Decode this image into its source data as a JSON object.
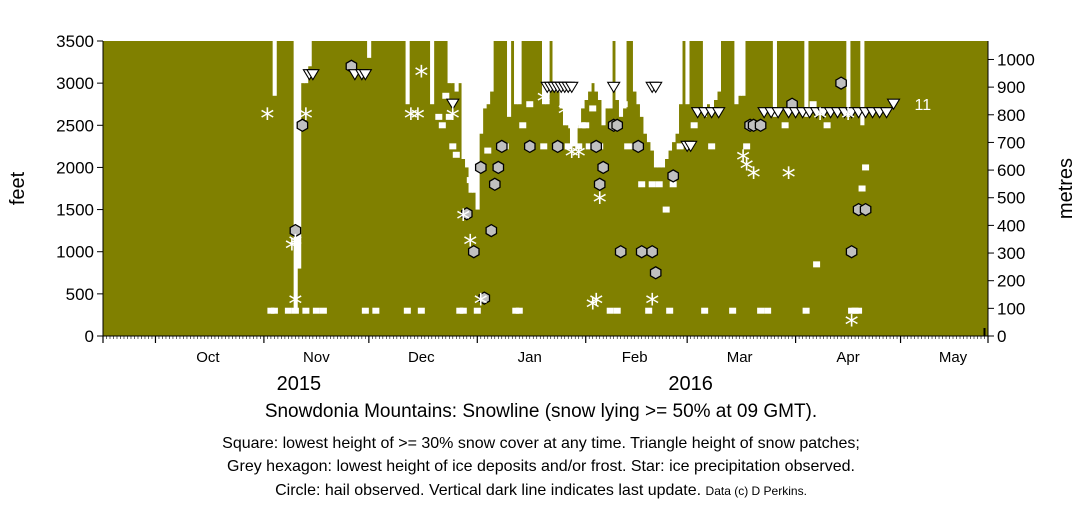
{
  "chart_data": {
    "type": "scatter",
    "title": "Snowdonia Mountains: Snowline (snow lying >= 50% at 09 GMT).",
    "notes": [
      "Square: lowest height of >= 30% snow cover at any time. Triangle height of snow patches;",
      "Grey hexagon: lowest height of ice deposits and/or frost. Star: ice precipitation observed.",
      "Circle: hail observed. Vertical dark line indicates last update."
    ],
    "credit": "Data (c) D Perkins.",
    "ylabel_left": "feet",
    "ylabel_right": "metres",
    "ylim_feet": [
      0,
      3500
    ],
    "ylim_metres": [
      0,
      1066.8
    ],
    "yticks_feet": [
      0,
      500,
      1000,
      1500,
      2000,
      2500,
      3000,
      3500
    ],
    "yticks_metres": [
      0,
      100,
      200,
      300,
      400,
      500,
      600,
      700,
      800,
      900,
      1000
    ],
    "xlim": [
      "2015-09-16",
      "2016-05-26"
    ],
    "month_ticks": [
      "2015-09-16",
      "2015-10-01",
      "2015-11-01",
      "2015-12-01",
      "2016-01-01",
      "2016-02-01",
      "2016-03-01",
      "2016-04-01",
      "2016-05-01",
      "2016-05-26"
    ],
    "month_labels": [
      {
        "date": "2015-10-16",
        "label": "Oct"
      },
      {
        "date": "2015-11-16",
        "label": "Nov"
      },
      {
        "date": "2015-12-16",
        "label": "Dec"
      },
      {
        "date": "2016-01-16",
        "label": "Jan"
      },
      {
        "date": "2016-02-15",
        "label": "Feb"
      },
      {
        "date": "2016-03-16",
        "label": "Mar"
      },
      {
        "date": "2016-04-16",
        "label": "Apr"
      },
      {
        "date": "2016-05-16",
        "label": "May"
      }
    ],
    "year_labels": [
      {
        "date": "2015-11-11",
        "label": "2015"
      },
      {
        "date": "2016-03-02",
        "label": "2016"
      }
    ],
    "colors": {
      "background": "#808000",
      "snow": "#ffffff",
      "hexagon": "#c0c0c0",
      "outline": "#000000"
    },
    "snowline_columns": [
      [
        "2015-11-04",
        2850
      ],
      [
        "2015-11-10",
        300
      ],
      [
        "2015-11-11",
        800
      ],
      [
        "2015-11-12",
        3000
      ],
      [
        "2015-11-13",
        3000
      ],
      [
        "2015-11-14",
        3200
      ],
      [
        "2015-12-01",
        3300
      ],
      [
        "2015-12-12",
        2750
      ],
      [
        "2015-12-19",
        2750
      ],
      [
        "2015-12-24",
        3000
      ],
      [
        "2015-12-25",
        3000
      ],
      [
        "2015-12-26",
        2900
      ],
      [
        "2015-12-27",
        3000
      ],
      [
        "2015-12-28",
        2100
      ],
      [
        "2015-12-29",
        2000
      ],
      [
        "2015-12-30",
        1700
      ],
      [
        "2015-12-31",
        1700
      ],
      [
        "2016-01-01",
        1500
      ],
      [
        "2016-01-02",
        2400
      ],
      [
        "2016-01-03",
        2700
      ],
      [
        "2016-01-04",
        2750
      ],
      [
        "2016-01-05",
        2900
      ],
      [
        "2016-01-10",
        2600
      ],
      [
        "2016-01-12",
        2750
      ],
      [
        "2016-01-13",
        2750
      ],
      [
        "2016-01-20",
        2750
      ],
      [
        "2016-01-21",
        2750
      ],
      [
        "2016-01-23",
        3000
      ],
      [
        "2016-01-24",
        2900
      ],
      [
        "2016-01-25",
        2700
      ],
      [
        "2016-01-26",
        2500
      ],
      [
        "2016-01-27",
        2500
      ],
      [
        "2016-01-28",
        2250
      ],
      [
        "2016-01-29",
        2250
      ],
      [
        "2016-01-30",
        2500
      ],
      [
        "2016-01-31",
        2700
      ],
      [
        "2016-02-01",
        2800
      ],
      [
        "2016-02-02",
        2900
      ],
      [
        "2016-02-03",
        3000
      ],
      [
        "2016-02-04",
        2900
      ],
      [
        "2016-02-05",
        2800
      ],
      [
        "2016-02-06",
        2500
      ],
      [
        "2016-02-07",
        2700
      ],
      [
        "2016-02-08",
        2700
      ],
      [
        "2016-02-10",
        2800
      ],
      [
        "2016-02-11",
        2600
      ],
      [
        "2016-02-12",
        2700
      ],
      [
        "2016-02-15",
        2900
      ],
      [
        "2016-02-16",
        2750
      ],
      [
        "2016-02-17",
        2600
      ],
      [
        "2016-02-18",
        2400
      ],
      [
        "2016-02-19",
        2300
      ],
      [
        "2016-02-20",
        2200
      ],
      [
        "2016-02-21",
        2000
      ],
      [
        "2016-02-22",
        2000
      ],
      [
        "2016-02-23",
        2000
      ],
      [
        "2016-02-24",
        2100
      ],
      [
        "2016-02-25",
        2200
      ],
      [
        "2016-02-26",
        2300
      ],
      [
        "2016-02-27",
        2400
      ],
      [
        "2016-02-28",
        2750
      ],
      [
        "2016-03-01",
        2750
      ],
      [
        "2016-03-06",
        2600
      ],
      [
        "2016-03-07",
        2750
      ],
      [
        "2016-03-08",
        2700
      ],
      [
        "2016-03-09",
        2800
      ],
      [
        "2016-03-10",
        2900
      ],
      [
        "2016-03-15",
        2750
      ],
      [
        "2016-03-16",
        2850
      ],
      [
        "2016-03-17",
        2850
      ],
      [
        "2016-03-26",
        2600
      ],
      [
        "2016-04-04",
        2600
      ],
      [
        "2016-04-16",
        2600
      ],
      [
        "2016-04-20",
        2500
      ]
    ],
    "squares": [
      [
        "2015-11-03",
        300
      ],
      [
        "2015-11-04",
        300
      ],
      [
        "2015-11-08",
        300
      ],
      [
        "2015-11-10",
        300
      ],
      [
        "2015-11-13",
        300
      ],
      [
        "2015-11-16",
        300
      ],
      [
        "2015-11-18",
        300
      ],
      [
        "2015-11-30",
        300
      ],
      [
        "2015-12-03",
        300
      ],
      [
        "2015-12-12",
        300
      ],
      [
        "2015-12-16",
        300
      ],
      [
        "2015-12-21",
        2600
      ],
      [
        "2015-12-22",
        2500
      ],
      [
        "2015-12-23",
        2850
      ],
      [
        "2015-12-24",
        2600
      ],
      [
        "2015-12-25",
        2250
      ],
      [
        "2015-12-26",
        2150
      ],
      [
        "2015-12-27",
        300
      ],
      [
        "2015-12-28",
        300
      ],
      [
        "2015-12-30",
        1850
      ],
      [
        "2016-01-01",
        300
      ],
      [
        "2016-01-04",
        2200
      ],
      [
        "2016-01-09",
        2250
      ],
      [
        "2016-01-12",
        300
      ],
      [
        "2016-01-13",
        300
      ],
      [
        "2016-01-14",
        2500
      ],
      [
        "2016-01-16",
        2750
      ],
      [
        "2016-01-20",
        2250
      ],
      [
        "2016-01-24",
        2250
      ],
      [
        "2016-01-27",
        2250
      ],
      [
        "2016-01-28",
        2500
      ],
      [
        "2016-01-29",
        2500
      ],
      [
        "2016-01-30",
        2250
      ],
      [
        "2016-01-31",
        2500
      ],
      [
        "2016-02-01",
        2500
      ],
      [
        "2016-02-02",
        2250
      ],
      [
        "2016-02-03",
        2700
      ],
      [
        "2016-02-05",
        2250
      ],
      [
        "2016-02-08",
        300
      ],
      [
        "2016-02-10",
        300
      ],
      [
        "2016-02-12",
        2750
      ],
      [
        "2016-02-13",
        2250
      ],
      [
        "2016-02-15",
        2250
      ],
      [
        "2016-02-17",
        1800
      ],
      [
        "2016-02-19",
        300
      ],
      [
        "2016-02-20",
        1800
      ],
      [
        "2016-02-22",
        1800
      ],
      [
        "2016-02-24",
        1500
      ],
      [
        "2016-02-25",
        300
      ],
      [
        "2016-02-26",
        1800
      ],
      [
        "2016-02-28",
        2250
      ],
      [
        "2016-03-03",
        2500
      ],
      [
        "2016-03-06",
        300
      ],
      [
        "2016-03-08",
        2250
      ],
      [
        "2016-03-14",
        300
      ],
      [
        "2016-03-18",
        2250
      ],
      [
        "2016-03-22",
        300
      ],
      [
        "2016-03-24",
        300
      ],
      [
        "2016-03-29",
        2500
      ],
      [
        "2016-04-04",
        300
      ],
      [
        "2016-04-06",
        2750
      ],
      [
        "2016-04-07",
        850
      ],
      [
        "2016-04-10",
        2500
      ],
      [
        "2016-04-17",
        300
      ],
      [
        "2016-04-18",
        300
      ],
      [
        "2016-04-19",
        300
      ],
      [
        "2016-04-20",
        1750
      ],
      [
        "2016-04-21",
        2000
      ]
    ],
    "triangles": [
      [
        "2015-11-14",
        3100
      ],
      [
        "2015-11-15",
        3100
      ],
      [
        "2015-11-27",
        3100
      ],
      [
        "2015-11-29",
        3100
      ],
      [
        "2015-11-30",
        3100
      ],
      [
        "2015-12-25",
        2750
      ],
      [
        "2016-01-21",
        2950
      ],
      [
        "2016-01-22",
        2950
      ],
      [
        "2016-01-23",
        2950
      ],
      [
        "2016-01-24",
        2950
      ],
      [
        "2016-01-25",
        2950
      ],
      [
        "2016-01-26",
        2950
      ],
      [
        "2016-01-27",
        2950
      ],
      [
        "2016-01-28",
        2950
      ],
      [
        "2016-02-09",
        2950
      ],
      [
        "2016-02-20",
        2950
      ],
      [
        "2016-02-21",
        2950
      ],
      [
        "2016-03-01",
        2250
      ],
      [
        "2016-03-02",
        2250
      ],
      [
        "2016-03-04",
        2650
      ],
      [
        "2016-03-06",
        2650
      ],
      [
        "2016-03-08",
        2650
      ],
      [
        "2016-03-10",
        2650
      ],
      [
        "2016-03-23",
        2650
      ],
      [
        "2016-03-25",
        2650
      ],
      [
        "2016-03-27",
        2650
      ],
      [
        "2016-03-30",
        2650
      ],
      [
        "2016-04-01",
        2650
      ],
      [
        "2016-04-03",
        2650
      ],
      [
        "2016-04-05",
        2650
      ],
      [
        "2016-04-07",
        2650
      ],
      [
        "2016-04-09",
        2650
      ],
      [
        "2016-04-11",
        2650
      ],
      [
        "2016-04-13",
        2650
      ],
      [
        "2016-04-15",
        2650
      ],
      [
        "2016-04-17",
        2650
      ],
      [
        "2016-04-19",
        2650
      ],
      [
        "2016-04-21",
        2650
      ],
      [
        "2016-04-23",
        2650
      ],
      [
        "2016-04-25",
        2650
      ],
      [
        "2016-04-27",
        2650
      ],
      [
        "2016-04-29",
        2750
      ]
    ],
    "hexagons": [
      [
        "2015-11-10",
        1250
      ],
      [
        "2015-11-12",
        2500
      ],
      [
        "2015-11-26",
        3200
      ],
      [
        "2015-12-29",
        1450
      ],
      [
        "2015-12-31",
        1000
      ],
      [
        "2016-01-02",
        2000
      ],
      [
        "2016-01-03",
        450
      ],
      [
        "2016-01-05",
        1250
      ],
      [
        "2016-01-06",
        1800
      ],
      [
        "2016-01-07",
        2000
      ],
      [
        "2016-01-08",
        2250
      ],
      [
        "2016-01-16",
        2250
      ],
      [
        "2016-01-24",
        2250
      ],
      [
        "2016-02-04",
        2250
      ],
      [
        "2016-02-05",
        1800
      ],
      [
        "2016-02-06",
        2000
      ],
      [
        "2016-02-09",
        2500
      ],
      [
        "2016-02-10",
        2500
      ],
      [
        "2016-02-11",
        1000
      ],
      [
        "2016-02-16",
        2250
      ],
      [
        "2016-02-17",
        1000
      ],
      [
        "2016-02-20",
        1000
      ],
      [
        "2016-02-21",
        750
      ],
      [
        "2016-02-26",
        1900
      ],
      [
        "2016-03-19",
        2500
      ],
      [
        "2016-03-20",
        2500
      ],
      [
        "2016-03-22",
        2500
      ],
      [
        "2016-03-31",
        2750
      ],
      [
        "2016-04-14",
        3000
      ],
      [
        "2016-04-17",
        1000
      ],
      [
        "2016-04-19",
        1500
      ],
      [
        "2016-04-21",
        1500
      ]
    ],
    "stars": [
      [
        "2015-11-02",
        2600
      ],
      [
        "2015-11-09",
        1050
      ],
      [
        "2015-11-10",
        1100
      ],
      [
        "2015-11-10",
        400
      ],
      [
        "2015-11-13",
        2600
      ],
      [
        "2015-12-13",
        2600
      ],
      [
        "2015-12-15",
        2600
      ],
      [
        "2015-12-16",
        3100
      ],
      [
        "2015-12-25",
        2600
      ],
      [
        "2015-12-28",
        1400
      ],
      [
        "2015-12-30",
        1100
      ],
      [
        "2016-01-02",
        400
      ],
      [
        "2016-01-20",
        2800
      ],
      [
        "2016-01-26",
        2650
      ],
      [
        "2016-01-27",
        3100
      ],
      [
        "2016-01-28",
        2150
      ],
      [
        "2016-01-30",
        2150
      ],
      [
        "2016-02-03",
        350
      ],
      [
        "2016-02-04",
        400
      ],
      [
        "2016-02-05",
        1600
      ],
      [
        "2016-02-20",
        400
      ],
      [
        "2016-03-17",
        2100
      ],
      [
        "2016-03-18",
        2000
      ],
      [
        "2016-03-20",
        1900
      ],
      [
        "2016-03-30",
        1900
      ],
      [
        "2016-04-08",
        2600
      ],
      [
        "2016-04-16",
        2600
      ],
      [
        "2016-04-17",
        150
      ]
    ],
    "last_update": "2016-05-25",
    "annotation": {
      "date": "2016-05-01",
      "y": 2750,
      "label": "11"
    }
  }
}
